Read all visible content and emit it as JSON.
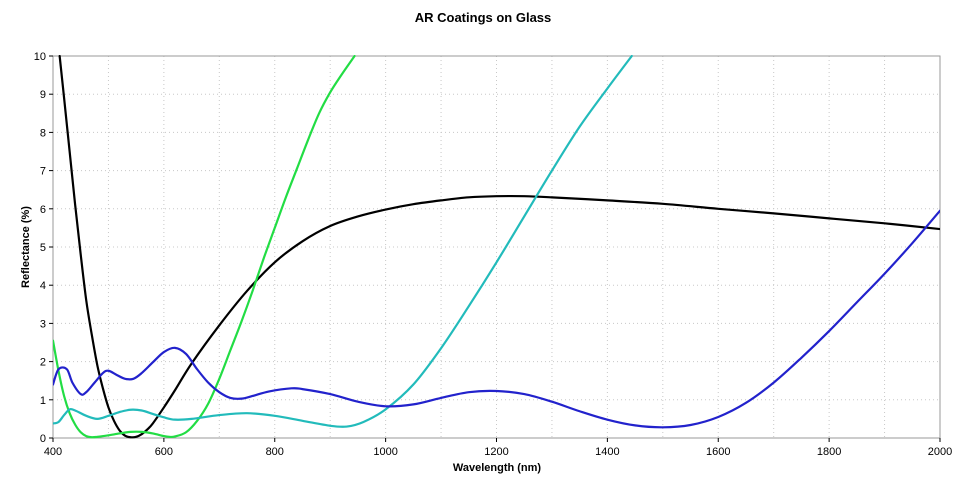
{
  "chart_data": {
    "type": "line",
    "title": "AR Coatings on Glass",
    "xlabel": "Wavelength (nm)",
    "ylabel": "Reflectance (%)",
    "xlim": [
      400,
      2000
    ],
    "ylim": [
      0,
      10
    ],
    "xticks": [
      400,
      600,
      800,
      1000,
      1200,
      1400,
      1600,
      1800,
      2000
    ],
    "yticks": [
      0,
      1,
      2,
      3,
      4,
      5,
      6,
      7,
      8,
      9,
      10
    ],
    "grid": true,
    "legend": "none",
    "series": [
      {
        "color": "#000000",
        "points": [
          [
            412,
            10
          ],
          [
            420,
            8.9
          ],
          [
            430,
            7.5
          ],
          [
            440,
            6.1
          ],
          [
            450,
            4.8
          ],
          [
            460,
            3.6
          ],
          [
            470,
            2.7
          ],
          [
            480,
            1.9
          ],
          [
            490,
            1.3
          ],
          [
            500,
            0.8
          ],
          [
            510,
            0.45
          ],
          [
            520,
            0.2
          ],
          [
            530,
            0.06
          ],
          [
            540,
            0.02
          ],
          [
            550,
            0.03
          ],
          [
            560,
            0.1
          ],
          [
            570,
            0.22
          ],
          [
            580,
            0.38
          ],
          [
            600,
            0.8
          ],
          [
            620,
            1.25
          ],
          [
            650,
            1.95
          ],
          [
            700,
            2.95
          ],
          [
            750,
            3.85
          ],
          [
            800,
            4.6
          ],
          [
            850,
            5.15
          ],
          [
            900,
            5.55
          ],
          [
            950,
            5.8
          ],
          [
            1000,
            5.98
          ],
          [
            1050,
            6.12
          ],
          [
            1100,
            6.22
          ],
          [
            1150,
            6.3
          ],
          [
            1200,
            6.33
          ],
          [
            1250,
            6.33
          ],
          [
            1300,
            6.3
          ],
          [
            1400,
            6.22
          ],
          [
            1500,
            6.13
          ],
          [
            1600,
            6.0
          ],
          [
            1700,
            5.88
          ],
          [
            1800,
            5.75
          ],
          [
            1900,
            5.62
          ],
          [
            2000,
            5.47
          ]
        ]
      },
      {
        "color": "#22dd44",
        "points": [
          [
            400,
            2.55
          ],
          [
            410,
            1.75
          ],
          [
            420,
            1.1
          ],
          [
            430,
            0.65
          ],
          [
            440,
            0.35
          ],
          [
            450,
            0.15
          ],
          [
            460,
            0.05
          ],
          [
            470,
            0.02
          ],
          [
            480,
            0.03
          ],
          [
            500,
            0.07
          ],
          [
            520,
            0.12
          ],
          [
            540,
            0.16
          ],
          [
            560,
            0.16
          ],
          [
            580,
            0.12
          ],
          [
            600,
            0.05
          ],
          [
            610,
            0.03
          ],
          [
            620,
            0.04
          ],
          [
            640,
            0.15
          ],
          [
            660,
            0.45
          ],
          [
            680,
            0.9
          ],
          [
            700,
            1.55
          ],
          [
            720,
            2.3
          ],
          [
            740,
            3.05
          ],
          [
            760,
            3.85
          ],
          [
            780,
            4.7
          ],
          [
            800,
            5.5
          ],
          [
            820,
            6.3
          ],
          [
            840,
            7.05
          ],
          [
            860,
            7.8
          ],
          [
            880,
            8.5
          ],
          [
            900,
            9.05
          ],
          [
            920,
            9.5
          ],
          [
            944,
            10
          ]
        ]
      },
      {
        "color": "#22bbbb",
        "points": [
          [
            400,
            0.38
          ],
          [
            410,
            0.42
          ],
          [
            420,
            0.6
          ],
          [
            430,
            0.75
          ],
          [
            440,
            0.72
          ],
          [
            460,
            0.58
          ],
          [
            480,
            0.5
          ],
          [
            500,
            0.58
          ],
          [
            520,
            0.68
          ],
          [
            540,
            0.74
          ],
          [
            560,
            0.72
          ],
          [
            580,
            0.63
          ],
          [
            600,
            0.54
          ],
          [
            620,
            0.48
          ],
          [
            650,
            0.5
          ],
          [
            700,
            0.6
          ],
          [
            750,
            0.65
          ],
          [
            800,
            0.58
          ],
          [
            850,
            0.45
          ],
          [
            900,
            0.32
          ],
          [
            930,
            0.3
          ],
          [
            960,
            0.42
          ],
          [
            1000,
            0.75
          ],
          [
            1050,
            1.4
          ],
          [
            1100,
            2.35
          ],
          [
            1150,
            3.45
          ],
          [
            1200,
            4.6
          ],
          [
            1250,
            5.8
          ],
          [
            1300,
            7.0
          ],
          [
            1350,
            8.15
          ],
          [
            1400,
            9.15
          ],
          [
            1444,
            10
          ]
        ]
      },
      {
        "color": "#2222cc",
        "points": [
          [
            400,
            1.4
          ],
          [
            410,
            1.8
          ],
          [
            425,
            1.8
          ],
          [
            435,
            1.45
          ],
          [
            450,
            1.15
          ],
          [
            460,
            1.2
          ],
          [
            475,
            1.45
          ],
          [
            490,
            1.7
          ],
          [
            500,
            1.76
          ],
          [
            515,
            1.65
          ],
          [
            530,
            1.55
          ],
          [
            545,
            1.55
          ],
          [
            560,
            1.7
          ],
          [
            580,
            1.98
          ],
          [
            600,
            2.25
          ],
          [
            620,
            2.36
          ],
          [
            640,
            2.2
          ],
          [
            660,
            1.8
          ],
          [
            680,
            1.45
          ],
          [
            700,
            1.2
          ],
          [
            720,
            1.05
          ],
          [
            740,
            1.03
          ],
          [
            760,
            1.1
          ],
          [
            790,
            1.22
          ],
          [
            830,
            1.3
          ],
          [
            850,
            1.28
          ],
          [
            900,
            1.15
          ],
          [
            950,
            0.95
          ],
          [
            1000,
            0.83
          ],
          [
            1050,
            0.88
          ],
          [
            1100,
            1.05
          ],
          [
            1150,
            1.2
          ],
          [
            1200,
            1.23
          ],
          [
            1250,
            1.15
          ],
          [
            1300,
            0.95
          ],
          [
            1350,
            0.7
          ],
          [
            1400,
            0.48
          ],
          [
            1450,
            0.33
          ],
          [
            1500,
            0.28
          ],
          [
            1550,
            0.34
          ],
          [
            1600,
            0.55
          ],
          [
            1650,
            0.92
          ],
          [
            1700,
            1.45
          ],
          [
            1750,
            2.1
          ],
          [
            1800,
            2.8
          ],
          [
            1850,
            3.55
          ],
          [
            1900,
            4.3
          ],
          [
            1950,
            5.1
          ],
          [
            2000,
            5.95
          ]
        ]
      }
    ]
  }
}
